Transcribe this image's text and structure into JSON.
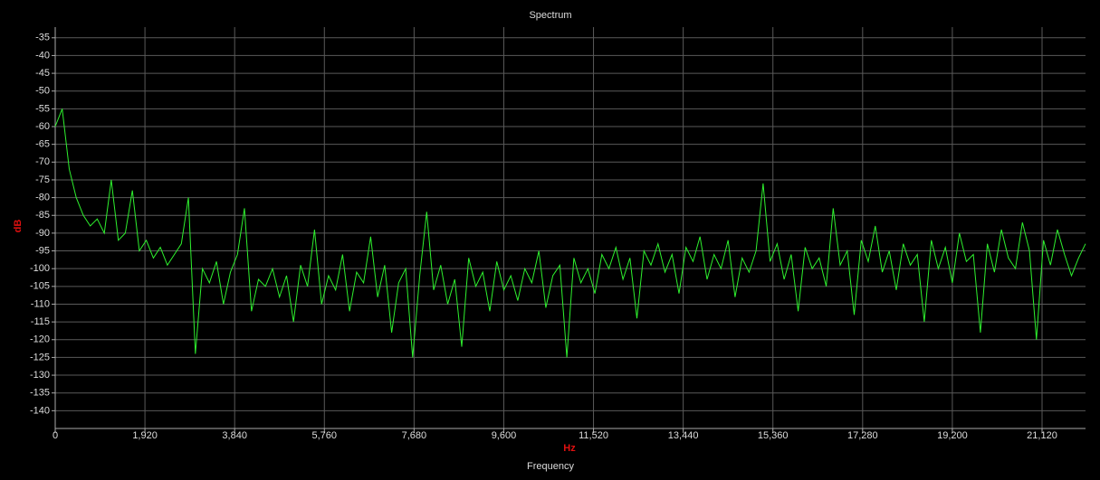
{
  "chart_data": {
    "type": "line",
    "title": "Spectrum",
    "xlabel": "Hz",
    "xlabel_below": "Frequency",
    "ylabel": "dB",
    "x": [
      0,
      150,
      300,
      450,
      600,
      750,
      900,
      1050,
      1200,
      1350,
      1500,
      1650,
      1800,
      1950,
      2100,
      2250,
      2400,
      2550,
      2700,
      2850,
      3000,
      3150,
      3300,
      3450,
      3600,
      3750,
      3900,
      4050,
      4200,
      4350,
      4500,
      4650,
      4800,
      4950,
      5100,
      5250,
      5400,
      5550,
      5700,
      5850,
      6000,
      6150,
      6300,
      6450,
      6600,
      6750,
      6900,
      7050,
      7200,
      7350,
      7500,
      7650,
      7800,
      7950,
      8100,
      8250,
      8400,
      8550,
      8700,
      8850,
      9000,
      9150,
      9300,
      9450,
      9600,
      9750,
      9900,
      10050,
      10200,
      10350,
      10500,
      10650,
      10800,
      10950,
      11100,
      11250,
      11400,
      11550,
      11700,
      11850,
      12000,
      12150,
      12300,
      12450,
      12600,
      12750,
      12900,
      13050,
      13200,
      13350,
      13500,
      13650,
      13800,
      13950,
      14100,
      14250,
      14400,
      14550,
      14700,
      14850,
      15000,
      15150,
      15300,
      15450,
      15600,
      15750,
      15900,
      16050,
      16200,
      16350,
      16500,
      16650,
      16800,
      16950,
      17100,
      17250,
      17400,
      17550,
      17700,
      17850,
      18000,
      18150,
      18300,
      18450,
      18600,
      18750,
      18900,
      19050,
      19200,
      19350,
      19500,
      19650,
      19800,
      19950,
      20100,
      20250,
      20400,
      20550,
      20700,
      20850,
      21000,
      21150,
      21300,
      21450,
      21600,
      21750,
      21900,
      22050
    ],
    "series": [
      {
        "color": "#2ef02e",
        "values": [
          -60,
          -55,
          -72,
          -80,
          -85,
          -88,
          -86,
          -90,
          -75,
          -92,
          -90,
          -78,
          -95,
          -92,
          -97,
          -94,
          -99,
          -96,
          -93,
          -80,
          -124,
          -100,
          -104,
          -98,
          -110,
          -101,
          -96,
          -83,
          -112,
          -103,
          -105,
          -100,
          -108,
          -102,
          -115,
          -99,
          -105,
          -89,
          -110,
          -102,
          -106,
          -96,
          -112,
          -101,
          -104,
          -91,
          -108,
          -99,
          -118,
          -104,
          -100,
          -125,
          -102,
          -84,
          -106,
          -99,
          -110,
          -103,
          -122,
          -97,
          -105,
          -101,
          -112,
          -98,
          -106,
          -102,
          -109,
          -100,
          -104,
          -95,
          -111,
          -102,
          -99,
          -125,
          -97,
          -104,
          -100,
          -107,
          -96,
          -100,
          -94,
          -103,
          -97,
          -114,
          -95,
          -99,
          -93,
          -101,
          -96,
          -107,
          -94,
          -98,
          -91,
          -103,
          -96,
          -100,
          -92,
          -108,
          -97,
          -101,
          -95,
          -76,
          -98,
          -93,
          -103,
          -96,
          -112,
          -94,
          -100,
          -97,
          -105,
          -83,
          -99,
          -95,
          -113,
          -92,
          -98,
          -88,
          -101,
          -95,
          -106,
          -93,
          -99,
          -96,
          -115,
          -92,
          -100,
          -94,
          -104,
          -90,
          -98,
          -96,
          -118,
          -93,
          -101,
          -89,
          -97,
          -100,
          -87,
          -95,
          -120,
          -92,
          -99,
          -89,
          -96,
          -102,
          -97,
          -93
        ]
      }
    ],
    "xlim": [
      0,
      22050
    ],
    "ylim": [
      -145,
      -32
    ],
    "xticks": [
      0,
      {
        "value": 1920,
        "label": "1,920"
      },
      {
        "value": 3840,
        "label": "3,840"
      },
      {
        "value": 5760,
        "label": "5,760"
      },
      {
        "value": 7680,
        "label": "7,680"
      },
      {
        "value": 9600,
        "label": "9,600"
      },
      {
        "value": 11520,
        "label": "11,520"
      },
      {
        "value": 13440,
        "label": "13,440"
      },
      {
        "value": 15360,
        "label": "15,360"
      },
      {
        "value": 17280,
        "label": "17,280"
      },
      {
        "value": 19200,
        "label": "19,200"
      },
      {
        "value": 21120,
        "label": "21,120"
      }
    ],
    "yticks": [
      -35,
      -40,
      -45,
      -50,
      -55,
      -60,
      -65,
      -70,
      -75,
      -80,
      -85,
      -90,
      -95,
      -100,
      -105,
      -110,
      -115,
      -120,
      -125,
      -130,
      -135,
      -140
    ],
    "grid": true
  }
}
